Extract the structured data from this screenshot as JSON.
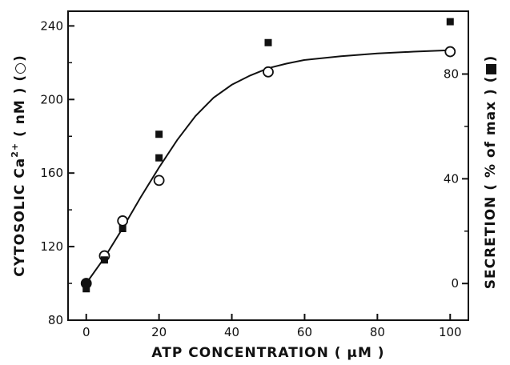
{
  "chart_data": {
    "type": "scatter",
    "xlabel": "ATP CONCENTRATION ( μM )",
    "ylabel_left": {
      "text": "CYTOSOLIC Ca",
      "superscript": "2+",
      "suffix": " ( nM ) (○)"
    },
    "ylabel_right": "SECRETION  ( % of max ) (■)",
    "xlim": [
      -5,
      105
    ],
    "ylim_left": [
      80,
      248
    ],
    "ylim_right": [
      -14,
      104
    ],
    "x_ticks": [
      0,
      20,
      40,
      60,
      80,
      100
    ],
    "y_left_ticks": [
      80,
      120,
      160,
      200,
      240
    ],
    "y_right_ticks": [
      0,
      40,
      80
    ],
    "grid": false,
    "series": [
      {
        "marker": "open-circle",
        "axis": "left",
        "points": [
          {
            "x": 0,
            "y": 100
          },
          {
            "x": 5,
            "y": 115
          },
          {
            "x": 10,
            "y": 134
          },
          {
            "x": 20,
            "y": 156
          },
          {
            "x": 50,
            "y": 215
          },
          {
            "x": 100,
            "y": 226
          }
        ]
      },
      {
        "marker": "filled-square",
        "axis": "right",
        "points": [
          {
            "x": 0,
            "y": -2
          },
          {
            "x": 5,
            "y": 9
          },
          {
            "x": 10,
            "y": 21
          },
          {
            "x": 20,
            "y": 48
          },
          {
            "x": 20,
            "y": 57
          },
          {
            "x": 50,
            "y": 92
          },
          {
            "x": 100,
            "y": 100
          }
        ]
      },
      {
        "marker": "filled-circle",
        "axis": "left",
        "points": [
          {
            "x": 0,
            "y": 100
          }
        ]
      }
    ],
    "fit_curve": {
      "axis": "left",
      "points": [
        {
          "x": 0,
          "y": 100
        },
        {
          "x": 5,
          "y": 114
        },
        {
          "x": 10,
          "y": 130
        },
        {
          "x": 15,
          "y": 147
        },
        {
          "x": 20,
          "y": 163
        },
        {
          "x": 25,
          "y": 178
        },
        {
          "x": 30,
          "y": 191
        },
        {
          "x": 35,
          "y": 201
        },
        {
          "x": 40,
          "y": 208
        },
        {
          "x": 45,
          "y": 213
        },
        {
          "x": 50,
          "y": 217
        },
        {
          "x": 55,
          "y": 219.5
        },
        {
          "x": 60,
          "y": 221.5
        },
        {
          "x": 70,
          "y": 223.5
        },
        {
          "x": 80,
          "y": 225
        },
        {
          "x": 90,
          "y": 226
        },
        {
          "x": 100,
          "y": 226.8
        }
      ]
    }
  }
}
